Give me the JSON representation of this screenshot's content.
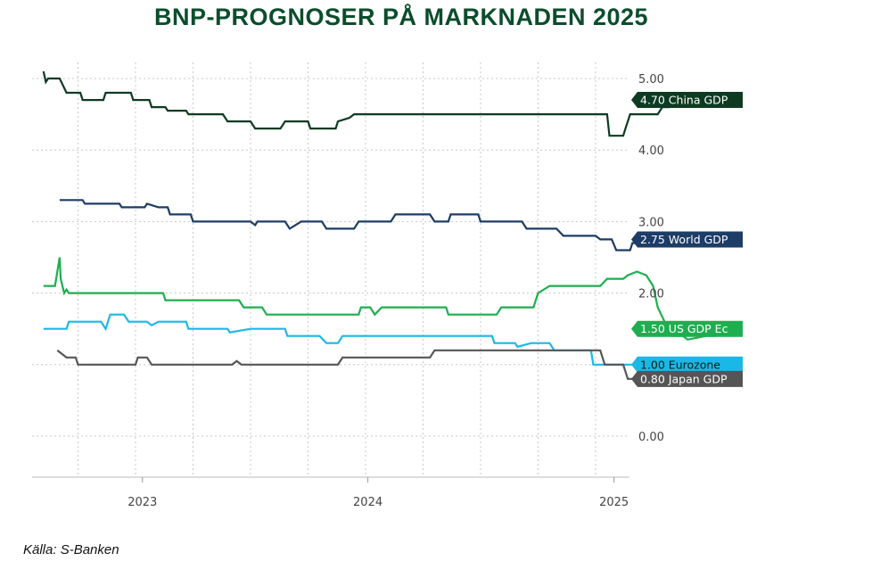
{
  "title": "BNP-PROGNOSER PÅ MARKNADEN 2025",
  "source": "Källa: S-Banken",
  "chart_data": {
    "type": "line",
    "title": "BNP-PROGNOSER PÅ MARKNADEN 2025",
    "xlabel": "",
    "ylabel": "",
    "x_ticks": [
      "2023",
      "2024",
      "2025"
    ],
    "y_ticks": [
      "0.00",
      "1.00",
      "2.00",
      "3.00",
      "4.00",
      "5.00"
    ],
    "ylim": [
      -0.6,
      5.2
    ],
    "grid": true,
    "y_axis_side": "right",
    "series": [
      {
        "name": "China GDP",
        "tag": "4.70 China GDP",
        "color": "#0d3b22",
        "text_color": "#ffffff",
        "points": [
          [
            2022.6,
            5.1
          ],
          [
            2022.61,
            4.95
          ],
          [
            2022.62,
            5.0
          ],
          [
            2022.67,
            5.0
          ],
          [
            2022.7,
            4.8
          ],
          [
            2022.76,
            4.8
          ],
          [
            2022.77,
            4.7
          ],
          [
            2022.86,
            4.7
          ],
          [
            2022.87,
            4.8
          ],
          [
            2022.98,
            4.8
          ],
          [
            2022.99,
            4.7
          ],
          [
            2023.06,
            4.7
          ],
          [
            2023.07,
            4.6
          ],
          [
            2023.13,
            4.6
          ],
          [
            2023.14,
            4.55
          ],
          [
            2023.22,
            4.55
          ],
          [
            2023.23,
            4.5
          ],
          [
            2023.38,
            4.5
          ],
          [
            2023.4,
            4.4
          ],
          [
            2023.5,
            4.4
          ],
          [
            2023.52,
            4.3
          ],
          [
            2023.63,
            4.3
          ],
          [
            2023.65,
            4.4
          ],
          [
            2023.75,
            4.4
          ],
          [
            2023.76,
            4.3
          ],
          [
            2023.87,
            4.3
          ],
          [
            2023.88,
            4.4
          ],
          [
            2023.93,
            4.45
          ],
          [
            2023.95,
            4.5
          ],
          [
            2024.15,
            4.5
          ],
          [
            2024.3,
            4.5
          ],
          [
            2024.6,
            4.5
          ],
          [
            2024.9,
            4.5
          ],
          [
            2025.05,
            4.5
          ],
          [
            2025.06,
            4.2
          ],
          [
            2025.12,
            4.2
          ],
          [
            2025.13,
            4.3
          ],
          [
            2025.15,
            4.5
          ],
          [
            2025.27,
            4.5
          ],
          [
            2025.29,
            4.6
          ],
          [
            2025.32,
            4.6
          ],
          [
            2025.33,
            4.7
          ],
          [
            2025.35,
            4.7
          ]
        ]
      },
      {
        "name": "World GDP",
        "tag": "2.75 World GDP",
        "color": "#1d3c66",
        "text_color": "#ffffff",
        "points": [
          [
            2022.67,
            3.3
          ],
          [
            2022.77,
            3.3
          ],
          [
            2022.78,
            3.25
          ],
          [
            2022.93,
            3.25
          ],
          [
            2022.94,
            3.2
          ],
          [
            2023.04,
            3.2
          ],
          [
            2023.05,
            3.25
          ],
          [
            2023.1,
            3.2
          ],
          [
            2023.14,
            3.2
          ],
          [
            2023.15,
            3.1
          ],
          [
            2023.24,
            3.1
          ],
          [
            2023.25,
            3.0
          ],
          [
            2023.5,
            3.0
          ],
          [
            2023.52,
            2.95
          ],
          [
            2023.53,
            3.0
          ],
          [
            2023.65,
            3.0
          ],
          [
            2023.67,
            2.9
          ],
          [
            2023.72,
            3.0
          ],
          [
            2023.81,
            3.0
          ],
          [
            2023.83,
            2.9
          ],
          [
            2023.95,
            2.9
          ],
          [
            2023.97,
            3.0
          ],
          [
            2024.11,
            3.0
          ],
          [
            2024.13,
            3.1
          ],
          [
            2024.28,
            3.1
          ],
          [
            2024.3,
            3.0
          ],
          [
            2024.36,
            3.0
          ],
          [
            2024.37,
            3.1
          ],
          [
            2024.49,
            3.1
          ],
          [
            2024.5,
            3.0
          ],
          [
            2024.68,
            3.0
          ],
          [
            2024.7,
            2.9
          ],
          [
            2024.83,
            2.9
          ],
          [
            2024.86,
            2.8
          ],
          [
            2025.0,
            2.8
          ],
          [
            2025.02,
            2.75
          ],
          [
            2025.07,
            2.75
          ],
          [
            2025.09,
            2.6
          ],
          [
            2025.15,
            2.6
          ],
          [
            2025.16,
            2.7
          ],
          [
            2025.33,
            2.7
          ],
          [
            2025.35,
            2.75
          ]
        ]
      },
      {
        "name": "US GDP Ec",
        "tag": "1.50 US GDP Ec",
        "color": "#1fae4f",
        "text_color": "#ffffff",
        "points": [
          [
            2022.6,
            2.1
          ],
          [
            2022.65,
            2.1
          ],
          [
            2022.66,
            2.3
          ],
          [
            2022.67,
            2.5
          ],
          [
            2022.675,
            2.2
          ],
          [
            2022.69,
            2.0
          ],
          [
            2022.7,
            2.05
          ],
          [
            2022.71,
            2.0
          ],
          [
            2023.12,
            2.0
          ],
          [
            2023.13,
            1.9
          ],
          [
            2023.45,
            1.9
          ],
          [
            2023.47,
            1.8
          ],
          [
            2023.55,
            1.8
          ],
          [
            2023.57,
            1.7
          ],
          [
            2023.97,
            1.7
          ],
          [
            2023.98,
            1.8
          ],
          [
            2024.02,
            1.8
          ],
          [
            2024.04,
            1.7
          ],
          [
            2024.07,
            1.8
          ],
          [
            2024.35,
            1.8
          ],
          [
            2024.36,
            1.7
          ],
          [
            2024.57,
            1.7
          ],
          [
            2024.59,
            1.8
          ],
          [
            2024.73,
            1.8
          ],
          [
            2024.75,
            2.0
          ],
          [
            2024.8,
            2.1
          ],
          [
            2025.02,
            2.1
          ],
          [
            2025.05,
            2.2
          ],
          [
            2025.12,
            2.2
          ],
          [
            2025.14,
            2.25
          ],
          [
            2025.18,
            2.3
          ],
          [
            2025.22,
            2.25
          ],
          [
            2025.25,
            2.1
          ],
          [
            2025.27,
            1.8
          ],
          [
            2025.3,
            1.6
          ],
          [
            2025.33,
            1.4
          ],
          [
            2025.38,
            1.4
          ],
          [
            2025.4,
            1.35
          ],
          [
            2025.48,
            1.4
          ],
          [
            2025.52,
            1.4
          ],
          [
            2025.53,
            1.5
          ],
          [
            2025.6,
            1.5
          ]
        ]
      },
      {
        "name": "Eurozone",
        "tag": "1.00 Eurozone",
        "color": "#1ab8e6",
        "text_color": "#1a1a1a",
        "points": [
          [
            2022.6,
            1.5
          ],
          [
            2022.7,
            1.5
          ],
          [
            2022.71,
            1.6
          ],
          [
            2022.85,
            1.6
          ],
          [
            2022.87,
            1.5
          ],
          [
            2022.89,
            1.7
          ],
          [
            2022.95,
            1.7
          ],
          [
            2022.97,
            1.6
          ],
          [
            2023.05,
            1.6
          ],
          [
            2023.07,
            1.55
          ],
          [
            2023.1,
            1.6
          ],
          [
            2023.22,
            1.6
          ],
          [
            2023.23,
            1.5
          ],
          [
            2023.4,
            1.5
          ],
          [
            2023.41,
            1.45
          ],
          [
            2023.5,
            1.5
          ],
          [
            2023.65,
            1.5
          ],
          [
            2023.66,
            1.4
          ],
          [
            2023.8,
            1.4
          ],
          [
            2023.83,
            1.3
          ],
          [
            2023.88,
            1.3
          ],
          [
            2023.9,
            1.4
          ],
          [
            2024.55,
            1.4
          ],
          [
            2024.56,
            1.3
          ],
          [
            2024.65,
            1.3
          ],
          [
            2024.66,
            1.25
          ],
          [
            2024.72,
            1.3
          ],
          [
            2024.8,
            1.3
          ],
          [
            2024.82,
            1.2
          ],
          [
            2024.98,
            1.2
          ],
          [
            2024.99,
            1.0
          ],
          [
            2025.2,
            1.0
          ],
          [
            2025.22,
            0.9
          ],
          [
            2025.3,
            0.9
          ],
          [
            2025.32,
            0.8
          ],
          [
            2025.45,
            0.8
          ],
          [
            2025.46,
            0.9
          ],
          [
            2025.5,
            0.9
          ],
          [
            2025.52,
            1.0
          ],
          [
            2025.62,
            1.0
          ]
        ]
      },
      {
        "name": "Japan GDP",
        "tag": "0.80 Japan GDP",
        "color": "#555555",
        "text_color": "#ffffff",
        "points": [
          [
            2022.66,
            1.2
          ],
          [
            2022.68,
            1.15
          ],
          [
            2022.7,
            1.1
          ],
          [
            2022.74,
            1.1
          ],
          [
            2022.75,
            1.0
          ],
          [
            2023.0,
            1.0
          ],
          [
            2023.01,
            1.1
          ],
          [
            2023.05,
            1.1
          ],
          [
            2023.07,
            1.0
          ],
          [
            2023.42,
            1.0
          ],
          [
            2023.44,
            1.05
          ],
          [
            2023.46,
            1.0
          ],
          [
            2023.88,
            1.0
          ],
          [
            2023.9,
            1.1
          ],
          [
            2024.28,
            1.1
          ],
          [
            2024.3,
            1.2
          ],
          [
            2025.02,
            1.2
          ],
          [
            2025.04,
            1.0
          ],
          [
            2025.12,
            1.0
          ],
          [
            2025.14,
            0.8
          ],
          [
            2025.62,
            0.8
          ]
        ]
      }
    ]
  }
}
